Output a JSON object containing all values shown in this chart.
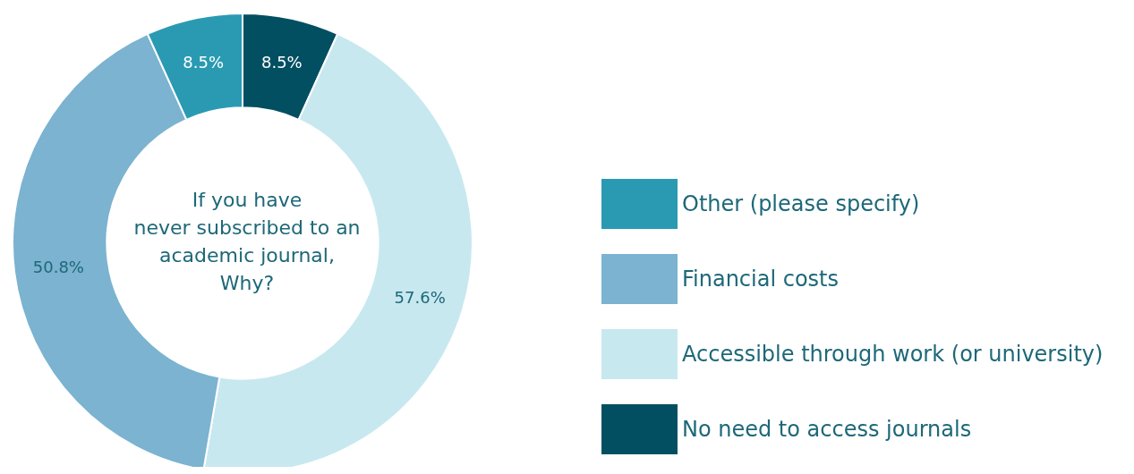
{
  "chart_data": {
    "type": "donut",
    "title": "If you have\nnever subscribed to an\nacademic journal,\nWhy?",
    "categories": [
      "No need to access journals",
      "Accessible through work (or university)",
      "Financial costs",
      "Other (please specify)"
    ],
    "values": [
      8.5,
      57.6,
      50.8,
      8.5
    ],
    "colors": [
      "#034f62",
      "#c8e8f0",
      "#7bb3d0",
      "#2a9ab3"
    ],
    "value_labels": [
      "8.5%",
      "57.6%",
      "50.8%",
      "8.5%"
    ],
    "legend": "right"
  }
}
